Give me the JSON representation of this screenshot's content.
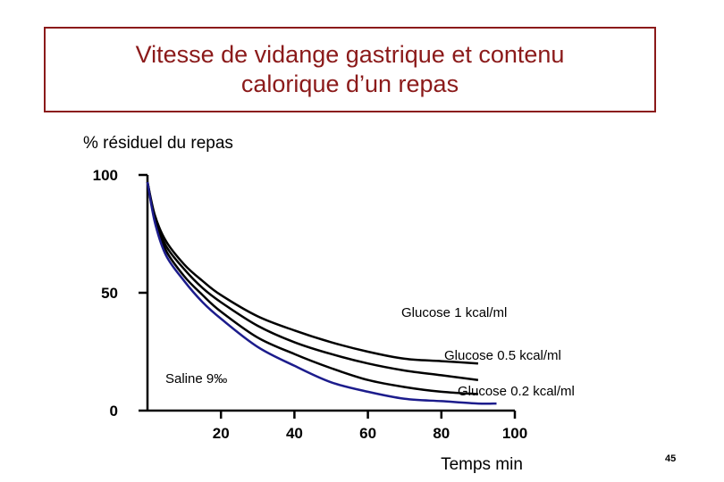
{
  "slide": {
    "title_line1": "Vitesse de vidange gastrique et contenu",
    "title_line2": "calorique d’un repas",
    "page_number": "45",
    "title_color": "#8b1a1a"
  },
  "chart_data": {
    "type": "line",
    "title": "Vitesse de vidange gastrique et contenu calorique d’un repas",
    "ylabel": "% résiduel du repas",
    "xlabel": "Temps min",
    "xlim": [
      0,
      100
    ],
    "ylim": [
      0,
      100
    ],
    "x_ticks": [
      20,
      40,
      60,
      80,
      100
    ],
    "y_ticks": [
      0,
      50,
      100
    ],
    "x_tick_labels": [
      "20",
      "40",
      "60",
      "80",
      "100"
    ],
    "y_tick_labels": [
      "0",
      "50",
      "100"
    ],
    "grid": false,
    "legend": "none",
    "series": [
      {
        "name": "Glucose 1 kcal/ml",
        "color": "#000000",
        "x": [
          0,
          2,
          5,
          10,
          15,
          20,
          30,
          40,
          50,
          60,
          70,
          80,
          90
        ],
        "y": [
          97,
          83,
          72,
          62,
          55,
          49,
          40,
          34,
          29,
          25,
          22,
          21,
          20
        ]
      },
      {
        "name": "Glucose 0.5 kcal/ml",
        "color": "#000000",
        "x": [
          0,
          2,
          5,
          10,
          15,
          20,
          30,
          40,
          50,
          60,
          70,
          80,
          90
        ],
        "y": [
          97,
          82,
          70,
          60,
          52,
          46,
          36,
          29,
          24,
          20,
          17,
          15,
          13
        ]
      },
      {
        "name": "Glucose 0.2 kcal/ml",
        "color": "#000000",
        "x": [
          0,
          2,
          5,
          10,
          15,
          20,
          30,
          40,
          50,
          60,
          70,
          80,
          90
        ],
        "y": [
          97,
          81,
          68,
          57,
          49,
          42,
          31,
          24,
          18,
          13,
          10,
          8,
          7
        ]
      },
      {
        "name": "Saline 9‰",
        "color": "#1c1c8c",
        "x": [
          0,
          2,
          5,
          10,
          15,
          20,
          30,
          40,
          50,
          60,
          70,
          80,
          90,
          95
        ],
        "y": [
          97,
          80,
          66,
          55,
          46,
          39,
          27,
          19,
          12,
          8,
          5,
          4,
          3,
          3
        ]
      }
    ]
  }
}
